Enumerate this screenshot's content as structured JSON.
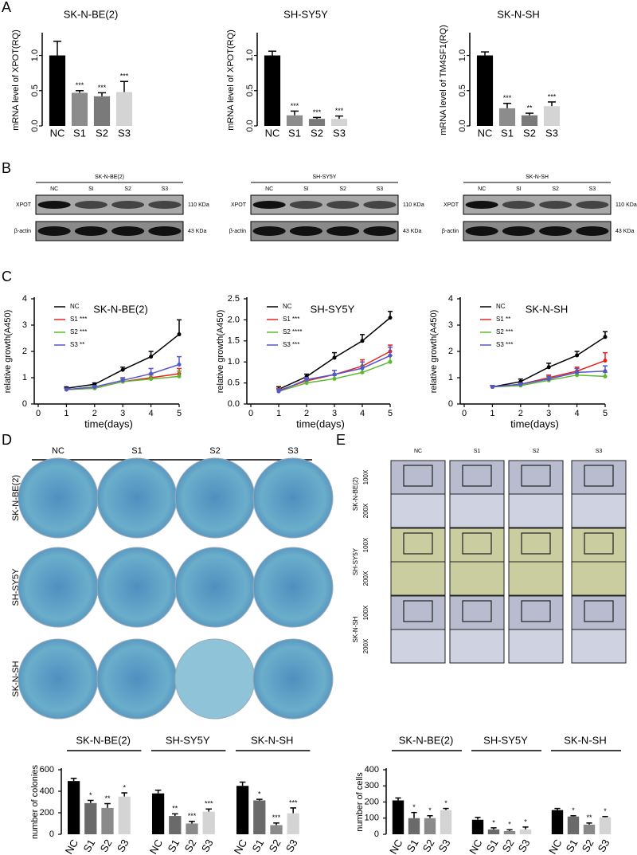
{
  "panel_labels": [
    "A",
    "B",
    "C",
    "D",
    "E"
  ],
  "chart_data": [
    {
      "type": "bar",
      "title": "SK-N-BE(2)",
      "y_label": "mRNA level of XPOT(RQ)",
      "categories": [
        "NC",
        "S1",
        "S2",
        "S3"
      ],
      "values": [
        1.0,
        0.47,
        0.42,
        0.48
      ],
      "errors": [
        0.2,
        0.03,
        0.05,
        0.15
      ],
      "annotations": [
        null,
        "***",
        "***",
        "***"
      ],
      "colors": [
        "#000000",
        "#8c8c8c",
        "#7a7a7a",
        "#d4d4d4"
      ],
      "ylim": [
        0,
        1.3
      ],
      "yticks": [
        {
          "value": 0,
          "label": "0.0"
        },
        0.5,
        {
          "value": 1,
          "label": "1.0"
        }
      ]
    },
    {
      "type": "bar",
      "title": "SH-SY5Y",
      "y_label": "mRNA level of XPOT(RQ)",
      "categories": [
        "NC",
        "S1",
        "S2",
        "S3"
      ],
      "values": [
        1.0,
        0.15,
        0.1,
        0.1
      ],
      "errors": [
        0.06,
        0.06,
        0.02,
        0.04
      ],
      "annotations": [
        null,
        "***",
        "***",
        "***"
      ],
      "colors": [
        "#000000",
        "#8c8c8c",
        "#7a7a7a",
        "#d4d4d4"
      ],
      "ylim": [
        0,
        1.3
      ],
      "yticks": [
        {
          "value": 0,
          "label": "0.0"
        },
        0.5,
        {
          "value": 1,
          "label": "1.0"
        }
      ]
    },
    {
      "type": "bar",
      "title": "SK-N-SH",
      "y_label": "mRNA level of TM4SF1(RQ)",
      "categories": [
        "NC",
        "S1",
        "S2",
        "S3"
      ],
      "values": [
        1.0,
        0.25,
        0.15,
        0.28
      ],
      "errors": [
        0.05,
        0.07,
        0.03,
        0.06
      ],
      "annotations": [
        null,
        "***",
        "**",
        "***"
      ],
      "colors": [
        "#000000",
        "#8c8c8c",
        "#7a7a7a",
        "#d4d4d4"
      ],
      "ylim": [
        0,
        1.3
      ],
      "yticks": [
        {
          "value": 0,
          "label": "0.0"
        },
        0.5,
        {
          "value": 1,
          "label": "1.0"
        }
      ]
    },
    {
      "type": "line",
      "title": "SK-N-BE(2)",
      "x_label": "time(days)",
      "y_label": "relative growth(A450)",
      "x": [
        1,
        2,
        3,
        4,
        5
      ],
      "series": [
        {
          "name": "NC",
          "color": "#000000",
          "values": [
            0.6,
            0.75,
            1.3,
            1.8,
            2.65
          ],
          "errors": [
            0.05,
            0.05,
            0.1,
            0.2,
            0.55
          ]
        },
        {
          "name": "S1 ***",
          "color": "#e8231f",
          "values": [
            0.55,
            0.6,
            0.85,
            1.0,
            1.15
          ],
          "errors": [
            0.05,
            0.05,
            0.1,
            0.15,
            0.2
          ]
        },
        {
          "name": "S2 ***",
          "color": "#5cb82e",
          "values": [
            0.55,
            0.6,
            0.85,
            0.95,
            1.05
          ],
          "errors": [
            0.05,
            0.05,
            0.1,
            0.15,
            0.2
          ]
        },
        {
          "name": "S3 **",
          "color": "#5555cc",
          "values": [
            0.55,
            0.65,
            0.9,
            1.15,
            1.5
          ],
          "errors": [
            0.05,
            0.05,
            0.1,
            0.2,
            0.3
          ]
        }
      ],
      "xlim": [
        0,
        5
      ],
      "xticks": [
        0,
        1,
        2,
        3,
        4,
        5
      ],
      "ylim": [
        0,
        4
      ],
      "yticks": [
        0,
        1,
        2,
        3,
        4
      ],
      "legend": "upper left"
    },
    {
      "type": "line",
      "title": "SH-SY5Y",
      "x_label": "time(days)",
      "y_label": "relative growth(A450)",
      "x": [
        1,
        2,
        3,
        4,
        5
      ],
      "series": [
        {
          "name": "NC",
          "color": "#000000",
          "values": [
            0.35,
            0.65,
            1.1,
            1.5,
            2.05
          ],
          "errors": [
            0.06,
            0.06,
            0.12,
            0.15,
            0.15
          ]
        },
        {
          "name": "S1 ***",
          "color": "#e8231f",
          "values": [
            0.32,
            0.55,
            0.7,
            0.9,
            1.25
          ],
          "errors": [
            0.05,
            0.05,
            0.1,
            0.15,
            0.15
          ]
        },
        {
          "name": "S2 ****",
          "color": "#5cb82e",
          "values": [
            0.3,
            0.5,
            0.6,
            0.75,
            1.0
          ],
          "errors": [
            0.05,
            0.05,
            0.08,
            0.15,
            0.15
          ]
        },
        {
          "name": "S3 ***",
          "color": "#5555cc",
          "values": [
            0.3,
            0.58,
            0.7,
            0.85,
            1.15
          ],
          "errors": [
            0.05,
            0.05,
            0.1,
            0.15,
            0.2
          ]
        }
      ],
      "xlim": [
        0,
        5
      ],
      "xticks": [
        0,
        1,
        2,
        3,
        4,
        5
      ],
      "ylim": [
        0,
        2.5
      ],
      "yticks": [
        {
          "value": 0,
          "label": "0.0"
        },
        0.5,
        {
          "value": 1,
          "label": "1.0"
        },
        1.5,
        {
          "value": 2,
          "label": "2.0"
        },
        2.5
      ],
      "legend": "upper left"
    },
    {
      "type": "line",
      "title": "SK-N-SH",
      "x_label": "time(days)",
      "y_label": "relative growth(A450)",
      "x": [
        1,
        2,
        3,
        4,
        5
      ],
      "series": [
        {
          "name": "NC",
          "color": "#000000",
          "values": [
            0.65,
            0.85,
            1.4,
            1.85,
            2.55
          ],
          "errors": [
            0.05,
            0.1,
            0.15,
            0.15,
            0.2
          ]
        },
        {
          "name": "S1 **",
          "color": "#e8231f",
          "values": [
            0.65,
            0.75,
            1.0,
            1.25,
            1.65
          ],
          "errors": [
            0.05,
            0.05,
            0.1,
            0.15,
            0.3
          ]
        },
        {
          "name": "S2 ***",
          "color": "#5cb82e",
          "values": [
            0.65,
            0.7,
            0.9,
            1.1,
            1.05
          ],
          "errors": [
            0.05,
            0.05,
            0.1,
            0.1,
            0.15
          ]
        },
        {
          "name": "S3 ***",
          "color": "#5555cc",
          "values": [
            0.65,
            0.75,
            0.95,
            1.2,
            1.25
          ],
          "errors": [
            0.05,
            0.05,
            0.1,
            0.15,
            0.2
          ]
        }
      ],
      "xlim": [
        0,
        5
      ],
      "xticks": [
        0,
        1,
        2,
        3,
        4,
        5
      ],
      "ylim": [
        0,
        4
      ],
      "yticks": [
        0,
        1,
        2,
        3,
        4
      ],
      "legend": "upper left"
    },
    {
      "type": "grouped_bar",
      "y_label": "number of colonies",
      "groups": [
        "SK-N-BE(2)",
        "SH-SY5Y",
        "SK-N-SH"
      ],
      "categories": [
        "NC",
        "S1",
        "S2",
        "S3",
        "NC",
        "S1",
        "S2",
        "S3",
        "NC",
        "S1",
        "S2",
        "S3"
      ],
      "values": [
        495,
        290,
        245,
        350,
        380,
        170,
        100,
        210,
        450,
        315,
        85,
        195
      ],
      "errors": [
        25,
        25,
        40,
        35,
        30,
        20,
        20,
        25,
        35,
        10,
        20,
        50
      ],
      "annotations": [
        null,
        "*",
        "**",
        "*",
        null,
        "**",
        "***",
        "***",
        null,
        "*",
        "***",
        "***"
      ],
      "colors": [
        "#000000",
        "#6a6a6a",
        "#8a8a8a",
        "#d4d4d4"
      ],
      "ylim": [
        0,
        600
      ],
      "yticks": [
        0,
        200,
        400,
        600
      ]
    },
    {
      "type": "grouped_bar",
      "y_label": "number of cells",
      "groups": [
        "SK-N-BE(2)",
        "SH-SY5Y",
        "SK-N-SH"
      ],
      "categories": [
        "NC",
        "S1",
        "S2",
        "S3",
        "NC",
        "S1",
        "S2",
        "S3",
        "NC",
        "S1",
        "S2",
        "S3"
      ],
      "values": [
        210,
        100,
        100,
        150,
        90,
        30,
        20,
        30,
        150,
        110,
        60,
        105
      ],
      "errors": [
        15,
        35,
        15,
        10,
        15,
        10,
        8,
        15,
        10,
        5,
        10,
        5
      ],
      "annotations": [
        null,
        "*",
        "*",
        "*",
        null,
        "*",
        "*",
        "*",
        null,
        "*",
        "**",
        "*"
      ],
      "colors": [
        "#000000",
        "#6a6a6a",
        "#8a8a8a",
        "#d4d4d4"
      ],
      "ylim": [
        0,
        400
      ],
      "yticks": [
        0,
        100,
        200,
        300,
        400
      ]
    }
  ],
  "blots": [
    {
      "title": "SK-N-BE(2)",
      "lanes": [
        "NC",
        "SI",
        "S2",
        "S3"
      ],
      "rows": [
        "XPOT",
        "β-actin"
      ],
      "sizes": [
        "110 KDa",
        "43 KDa"
      ]
    },
    {
      "title": "SH-SY5Y",
      "lanes": [
        "NC",
        "SI",
        "S2",
        "S3"
      ],
      "rows": [
        "XPOT",
        "β-actin"
      ],
      "sizes": [
        "110 KDa",
        "43 KDa"
      ]
    },
    {
      "title": "SK-N-SH",
      "lanes": [
        "NC",
        "SI",
        "S2",
        "S3"
      ],
      "rows": [
        "XPOT",
        "β-actin"
      ],
      "sizes": [
        "110 KDa",
        "43 KDa"
      ]
    }
  ],
  "colony_images": {
    "columns": [
      "NC",
      "S1",
      "S2",
      "S3"
    ],
    "rows": [
      "SK-N-BE(2)",
      "SH-SY5Y",
      "SK-N-SH"
    ]
  },
  "transwell_images": {
    "columns": [
      "NC",
      "S1",
      "S2",
      "S3"
    ],
    "rows": [
      "SK-N-BE(2)",
      "SH-SY5Y",
      "SK-N-SH"
    ],
    "magnifications": [
      "100X",
      "200X"
    ]
  }
}
